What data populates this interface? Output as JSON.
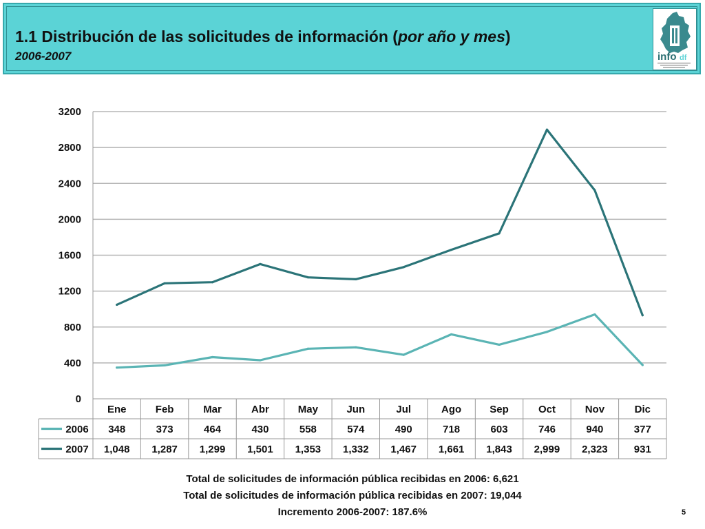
{
  "header": {
    "title_prefix": "1.1 Distribución de las solicitudes de información (",
    "title_em": "por año y mes",
    "title_suffix": ")",
    "subtitle": "2006-2007",
    "logo_text": "info",
    "logo_suffix": "df",
    "bg_color": "#5bd3d6"
  },
  "chart_data": {
    "type": "line",
    "categories": [
      "Ene",
      "Feb",
      "Mar",
      "Abr",
      "May",
      "Jun",
      "Jul",
      "Ago",
      "Sep",
      "Oct",
      "Nov",
      "Dic"
    ],
    "ylim": [
      0,
      3200
    ],
    "yticks": [
      0,
      400,
      800,
      1200,
      1600,
      2000,
      2400,
      2800,
      3200
    ],
    "grid": true,
    "legend": "data-table",
    "series": [
      {
        "name": "2006",
        "color": "#5ab4b4",
        "values": [
          348,
          373,
          464,
          430,
          558,
          574,
          490,
          718,
          603,
          746,
          940,
          377
        ],
        "labels": [
          "348",
          "373",
          "464",
          "430",
          "558",
          "574",
          "490",
          "718",
          "603",
          "746",
          "940",
          "377"
        ]
      },
      {
        "name": "2007",
        "color": "#2b7478",
        "values": [
          1048,
          1287,
          1299,
          1501,
          1353,
          1332,
          1467,
          1661,
          1843,
          2999,
          2323,
          931
        ],
        "labels": [
          "1,048",
          "1,287",
          "1,299",
          "1,501",
          "1,353",
          "1,332",
          "1,467",
          "1,661",
          "1,843",
          "2,999",
          "2,323",
          "931"
        ]
      }
    ]
  },
  "totals": {
    "line1": "Total de solicitudes de información pública recibidas en 2006: 6,621",
    "line2": "Total de solicitudes de información pública recibidas en 2007: 19,044",
    "line3": "Incremento 2006-2007: 187.6%"
  },
  "page_number": "5"
}
